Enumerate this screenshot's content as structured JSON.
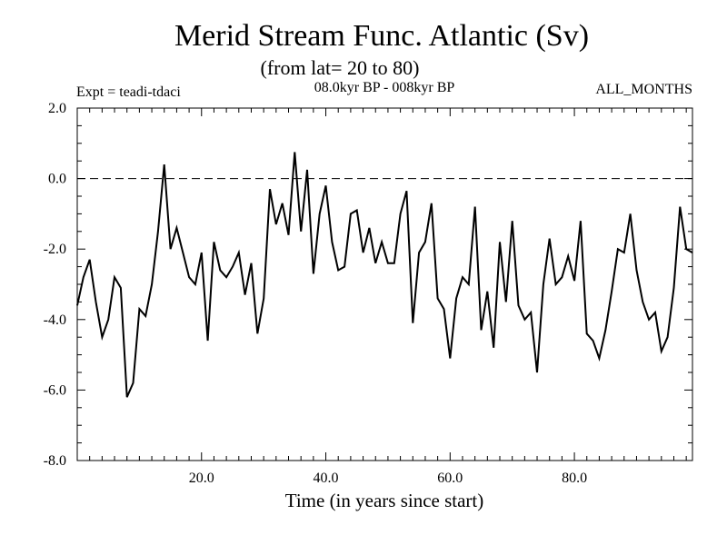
{
  "chart_data": {
    "type": "line",
    "title": "Merid Stream Func. Atlantic (Sv)",
    "subtitle": "(from lat= 20 to 80)",
    "left_label": "Expt = teadi-tdaci",
    "center_label": "08.0kyr BP - 008kyr BP",
    "right_label": "ALL_MONTHS",
    "xlabel": "Time (in years since start)",
    "ylabel": "",
    "xlim": [
      0,
      99
    ],
    "ylim": [
      -8,
      2
    ],
    "x_ticks": [
      20,
      40,
      60,
      80
    ],
    "x_tick_labels": [
      "20.0",
      "40.0",
      "60.0",
      "80.0"
    ],
    "y_ticks": [
      2,
      0,
      -2,
      -4,
      -6,
      -8
    ],
    "y_tick_labels": [
      "2.0",
      "0.0",
      "-2.0",
      "-4.0",
      "-6.0",
      "-8.0"
    ],
    "reference_line": 0,
    "series": [
      {
        "name": "Merid Stream Func.",
        "x": [
          0,
          1,
          2,
          3,
          4,
          5,
          6,
          7,
          8,
          9,
          10,
          11,
          12,
          13,
          14,
          15,
          16,
          17,
          18,
          19,
          20,
          21,
          22,
          23,
          24,
          25,
          26,
          27,
          28,
          29,
          30,
          31,
          32,
          33,
          34,
          35,
          36,
          37,
          38,
          39,
          40,
          41,
          42,
          43,
          44,
          45,
          46,
          47,
          48,
          49,
          50,
          51,
          52,
          53,
          54,
          55,
          56,
          57,
          58,
          59,
          60,
          61,
          62,
          63,
          64,
          65,
          66,
          67,
          68,
          69,
          70,
          71,
          72,
          73,
          74,
          75,
          76,
          77,
          78,
          79,
          80,
          81,
          82,
          83,
          84,
          85,
          86,
          87,
          88,
          89,
          90,
          91,
          92,
          93,
          94,
          95,
          96,
          97,
          98,
          99
        ],
        "values": [
          -3.6,
          -2.8,
          -2.3,
          -3.5,
          -4.5,
          -4.0,
          -2.8,
          -3.1,
          -6.2,
          -5.8,
          -3.7,
          -3.9,
          -3.0,
          -1.5,
          0.4,
          -2.0,
          -1.4,
          -2.1,
          -2.8,
          -3.0,
          -2.1,
          -4.6,
          -1.8,
          -2.6,
          -2.8,
          -2.5,
          -2.1,
          -3.3,
          -2.4,
          -4.4,
          -3.4,
          -0.3,
          -1.3,
          -0.7,
          -1.6,
          0.75,
          -1.5,
          0.25,
          -2.7,
          -1.0,
          -0.2,
          -1.8,
          -2.6,
          -2.5,
          -1.0,
          -0.9,
          -2.1,
          -1.4,
          -2.4,
          -1.8,
          -2.4,
          -2.4,
          -1.0,
          -0.35,
          -4.1,
          -2.1,
          -1.8,
          -0.7,
          -3.4,
          -3.7,
          -5.1,
          -3.4,
          -2.8,
          -3.0,
          -0.8,
          -4.3,
          -3.2,
          -4.8,
          -1.8,
          -3.5,
          -1.2,
          -3.6,
          -4.0,
          -3.8,
          -5.5,
          -3.0,
          -1.7,
          -3.0,
          -2.8,
          -2.2,
          -2.9,
          -1.2,
          -4.4,
          -4.6,
          -5.1,
          -4.3,
          -3.2,
          -2.0,
          -2.1,
          -1.0,
          -2.6,
          -3.5,
          -4.0,
          -3.8,
          -4.9,
          -4.5,
          -3.1,
          -0.8,
          -2.0,
          -2.1
        ]
      }
    ]
  }
}
